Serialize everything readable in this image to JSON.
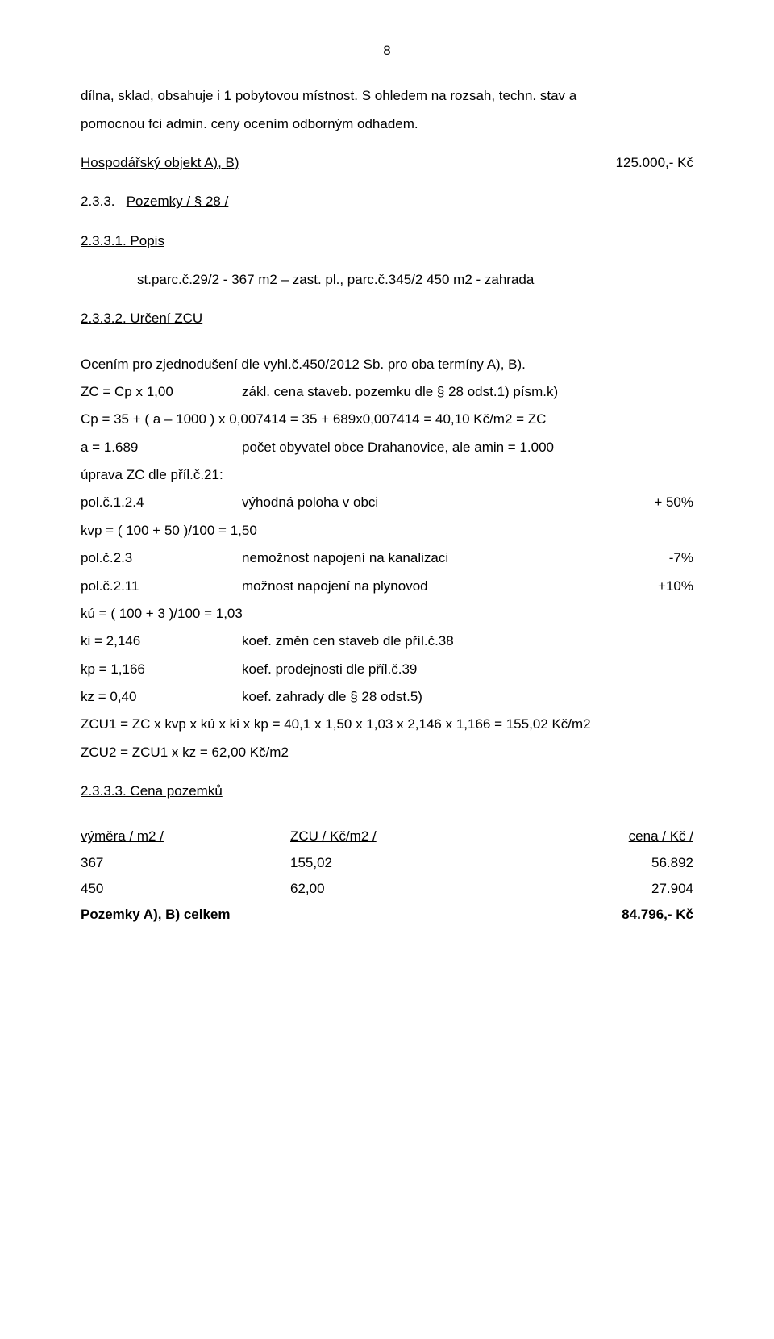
{
  "page_number": "8",
  "p1": "dílna, sklad, obsahuje i 1 pobytovou místnost. S ohledem na rozsah, techn. stav a",
  "p2": "pomocnou fci admin. ceny ocením odborným odhadem.",
  "row_obj": {
    "label": "Hospodářský objekt A), B)",
    "value": "125.000,- Kč"
  },
  "h_233": "2.3.3.",
  "h_233_t": "Pozemky  / § 28 /",
  "h_2331": "2.3.3.1. Popis",
  "parc1": "st.parc.č.29/2 - 367 m2 – zast. pl., parc.č.345/2  450 m2 - zahrada",
  "h_2332": "2.3.3.2. Určení ZCU",
  "p3": "Ocením pro zjednodušení dle vyhl.č.450/2012 Sb. pro oba termíny A), B).",
  "r_zc": {
    "a": "ZC = Cp x 1,00",
    "b": "zákl. cena staveb. pozemku dle § 28 odst.1) písm.k)"
  },
  "r_cp": "Cp = 35 + ( a – 1000 ) x 0,007414 = 35 + 689x0,007414 = 40,10 Kč/m2 = ZC",
  "r_a": {
    "a": "a = 1.689",
    "b": "počet obyvatel obce Drahanovice, ale amin = 1.000"
  },
  "r_upr": "úprava ZC dle příl.č.21:",
  "r_124": {
    "a": "pol.č.1.2.4",
    "b": "výhodná poloha v obci",
    "c": "+ 50%"
  },
  "r_kvp": "kvp = ( 100 + 50 )/100 = 1,50",
  "r_23": {
    "a": "pol.č.2.3",
    "b": "nemožnost napojení na kanalizaci",
    "c": "-7%"
  },
  "r_211": {
    "a": "pol.č.2.11",
    "b": "možnost napojení na plynovod",
    "c": "+10%"
  },
  "r_ku": "kú = ( 100 + 3 )/100 = 1,03",
  "r_ki": {
    "a": "ki = 2,146",
    "b": "koef. změn cen staveb dle příl.č.38"
  },
  "r_kp": {
    "a": "kp = 1,166",
    "b": "koef. prodejnosti dle příl.č.39"
  },
  "r_kz": {
    "a": "kz = 0,40",
    "b": "koef. zahrady dle § 28 odst.5)"
  },
  "r_zcu1": "ZCU1 = ZC x kvp x kú x ki x kp = 40,1 x 1,50 x 1,03 x 2,146 x 1,166 = 155,02 Kč/m2",
  "r_zcu2": "ZCU2 = ZCU1 x kz = 62,00 Kč/m2",
  "h_2333": "2.3.3.3. Cena pozemků",
  "th": {
    "a": "výměra / m2 /",
    "b": "ZCU / Kč/m2 /",
    "c": "cena / Kč /"
  },
  "tr1": {
    "a": "367",
    "b": "155,02",
    "c": "56.892"
  },
  "tr2": {
    "a": "450",
    "b": "62,00",
    "c": "27.904"
  },
  "tr_sum": {
    "a": "Pozemky A), B) celkem",
    "c": "84.796,- Kč"
  }
}
